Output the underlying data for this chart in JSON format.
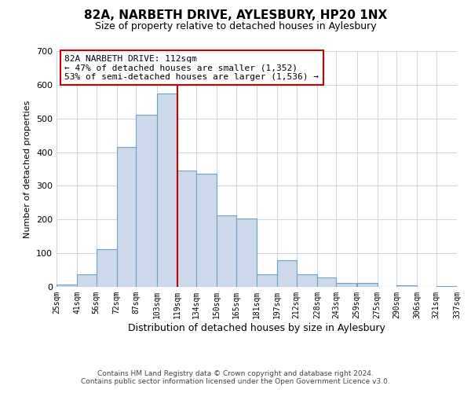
{
  "title": "82A, NARBETH DRIVE, AYLESBURY, HP20 1NX",
  "subtitle": "Size of property relative to detached houses in Aylesbury",
  "xlabel": "Distribution of detached houses by size in Aylesbury",
  "ylabel": "Number of detached properties",
  "bar_color": "#ccd9ea",
  "bar_edge_color": "#6ba3c8",
  "bins": [
    25,
    41,
    56,
    72,
    87,
    103,
    119,
    134,
    150,
    165,
    181,
    197,
    212,
    228,
    243,
    259,
    275,
    290,
    306,
    321,
    337
  ],
  "values": [
    8,
    38,
    113,
    415,
    510,
    575,
    345,
    335,
    212,
    202,
    38,
    80,
    37,
    27,
    12,
    12,
    0,
    5,
    0,
    3
  ],
  "vline_x": 119,
  "vline_color": "#cc0000",
  "ylim": [
    0,
    700
  ],
  "yticks": [
    0,
    100,
    200,
    300,
    400,
    500,
    600,
    700
  ],
  "annotation_title": "82A NARBETH DRIVE: 112sqm",
  "annotation_line1": "← 47% of detached houses are smaller (1,352)",
  "annotation_line2": "53% of semi-detached houses are larger (1,536) →",
  "annotation_box_color": "#ffffff",
  "annotation_box_edgecolor": "#cc0000",
  "footer1": "Contains HM Land Registry data © Crown copyright and database right 2024.",
  "footer2": "Contains public sector information licensed under the Open Government Licence v3.0.",
  "background_color": "#ffffff",
  "grid_color": "#c5cfe0",
  "bin_labels": [
    "25sqm",
    "41sqm",
    "56sqm",
    "72sqm",
    "87sqm",
    "103sqm",
    "119sqm",
    "134sqm",
    "150sqm",
    "165sqm",
    "181sqm",
    "197sqm",
    "212sqm",
    "228sqm",
    "243sqm",
    "259sqm",
    "275sqm",
    "290sqm",
    "306sqm",
    "321sqm",
    "337sqm"
  ]
}
